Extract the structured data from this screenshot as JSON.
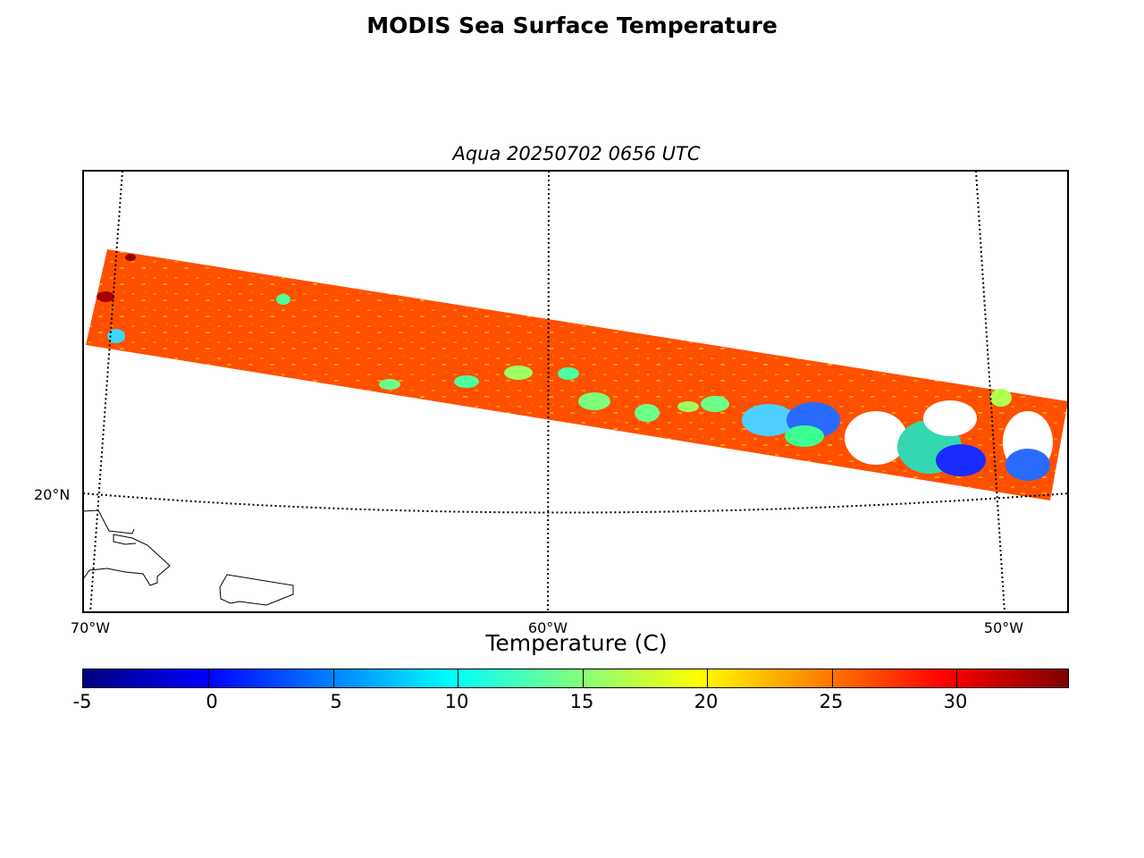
{
  "figure": {
    "title": "MODIS Sea Surface Temperature",
    "subtitle": "Aqua 20250702 0656 UTC"
  },
  "map": {
    "lat_labels": [
      "20°N"
    ],
    "lon_labels": [
      "70°W",
      "60°W",
      "50°W"
    ],
    "gridline_style": "dotted",
    "swath_dominant_color": "#ff4f00"
  },
  "colorbar": {
    "label": "Temperature (C)",
    "ticks": [
      "-5",
      "0",
      "5",
      "10",
      "15",
      "20",
      "25",
      "30"
    ],
    "range": [
      -5,
      34.5
    ],
    "colormap": "jet"
  }
}
